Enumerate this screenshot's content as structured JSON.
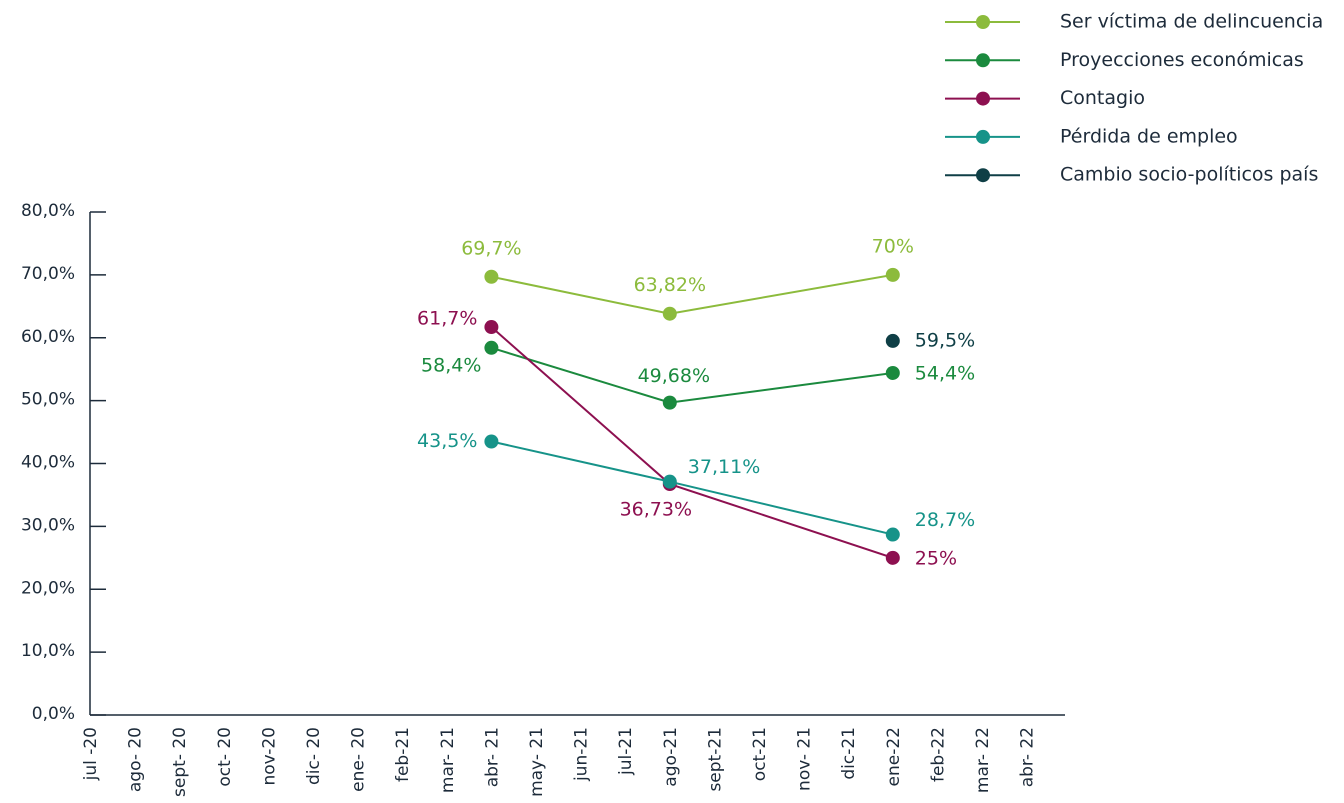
{
  "chart_data": {
    "type": "line",
    "categories": [
      "jul -20",
      "ago- 20",
      "sept- 20",
      "oct- 20",
      "nov-20",
      "dic- 20",
      "ene- 20",
      "feb-21",
      "mar- 21",
      "abr- 21",
      "may- 21",
      "jun-21",
      "jul-21",
      "ago-21",
      "sept-21",
      "oct-21",
      "nov- 21",
      "dic-21",
      "ene-22",
      "feb-22",
      "mar- 22",
      "abr- 22"
    ],
    "x": [
      "abr- 21",
      "ago-21",
      "ene-22"
    ],
    "ylim": [
      0,
      80
    ],
    "yticks": [
      {
        "value": 0,
        "label": "0,0%"
      },
      {
        "value": 10,
        "label": "10,0%"
      },
      {
        "value": 20,
        "label": "20,0%"
      },
      {
        "value": 30,
        "label": "30,0%"
      },
      {
        "value": 40,
        "label": "40,0%"
      },
      {
        "value": 50,
        "label": "50,0%"
      },
      {
        "value": 60,
        "label": "60,0%"
      },
      {
        "value": 70,
        "label": "70,0%"
      },
      {
        "value": 80,
        "label": "80,0%"
      }
    ],
    "legend": "top-right",
    "series": [
      {
        "name": "Ser víctima de delincuencia",
        "color": "#8cbb3c",
        "values": [
          69.7,
          63.82,
          70
        ],
        "value_labels": [
          "69,7%",
          "63,82%",
          "70%"
        ]
      },
      {
        "name": "Proyecciones económicas",
        "color": "#1b8a3e",
        "values": [
          58.4,
          49.68,
          54.4
        ],
        "value_labels": [
          "58,4%",
          "49,68%",
          "54,4%"
        ]
      },
      {
        "name": "Contagio",
        "color": "#8d1050",
        "values": [
          61.7,
          36.73,
          25
        ],
        "value_labels": [
          "61,7%",
          "36,73%",
          "25%"
        ]
      },
      {
        "name": "Pérdida de empleo",
        "color": "#169389",
        "values": [
          43.5,
          37.11,
          28.7
        ],
        "value_labels": [
          "43,5%",
          "37,11%",
          "28,7%"
        ]
      },
      {
        "name": "Cambio socio-políticos país",
        "color": "#0f3f46",
        "values": [
          null,
          null,
          59.5
        ],
        "value_labels": [
          null,
          null,
          "59,5%"
        ]
      }
    ]
  }
}
